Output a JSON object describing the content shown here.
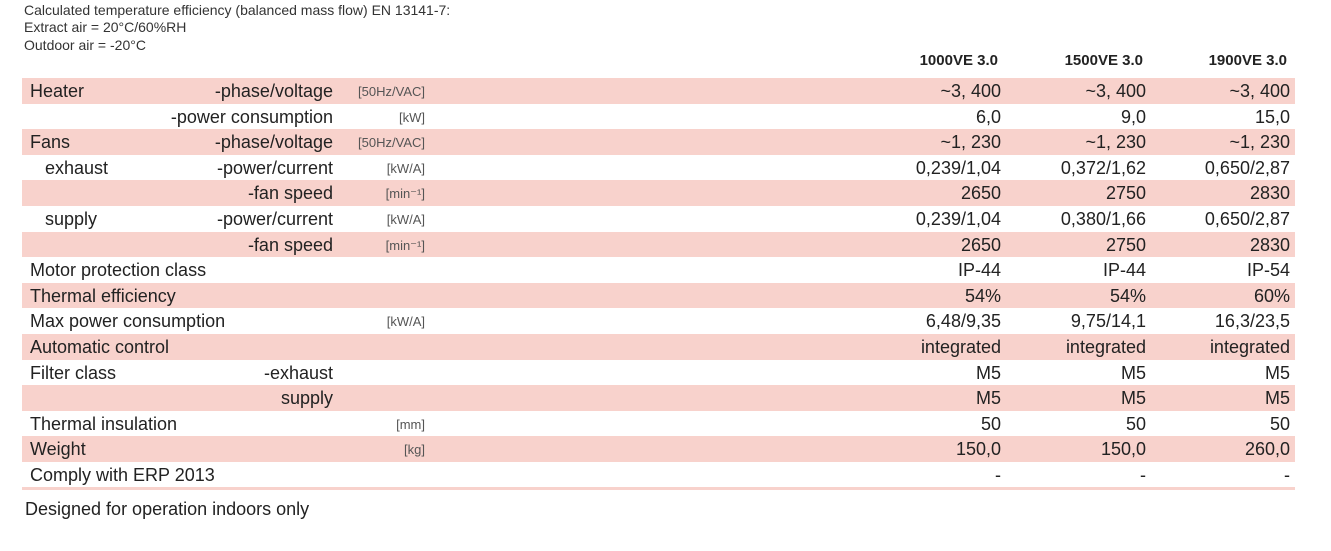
{
  "header": {
    "lines": [
      "Calculated temperature efficiency (balanced mass flow) EN 13141-7:",
      "Extract air = 20°C/60%RH",
      "Outdoor air = -20°C"
    ]
  },
  "table": {
    "columns": [
      "1000VE 3.0",
      "1500VE 3.0",
      "1900VE 3.0"
    ],
    "rows": [
      {
        "label": "Heater",
        "sublabel": "-phase/voltage",
        "unit": "[50Hz/VAC]",
        "values": [
          "~3, 400",
          "~3, 400",
          "~3, 400"
        ]
      },
      {
        "sublabel": "-power consumption",
        "unit": "[kW]",
        "values": [
          "6,0",
          "9,0",
          "15,0"
        ]
      },
      {
        "label": "Fans",
        "sublabel": "-phase/voltage",
        "unit": "[50Hz/VAC]",
        "values": [
          "~1, 230",
          "~1, 230",
          "~1, 230"
        ]
      },
      {
        "label": "exhaust",
        "sublabel": "-power/current",
        "unit": "[kW/A]",
        "values": [
          "0,239/1,04",
          "0,372/1,62",
          "0,650/2,87"
        ]
      },
      {
        "sublabel": "-fan speed",
        "unit": "[min⁻¹]",
        "values": [
          "2650",
          "2750",
          "2830"
        ]
      },
      {
        "label": "supply",
        "sublabel": "-power/current",
        "unit": "[kW/A]",
        "values": [
          "0,239/1,04",
          "0,380/1,66",
          "0,650/2,87"
        ]
      },
      {
        "sublabel": "-fan speed",
        "unit": "[min⁻¹]",
        "values": [
          "2650",
          "2750",
          "2830"
        ]
      },
      {
        "label": "Motor protection class",
        "values": [
          "IP-44",
          "IP-44",
          "IP-54"
        ]
      },
      {
        "label": "Thermal efficiency",
        "values": [
          "54%",
          "54%",
          "60%"
        ]
      },
      {
        "label": "Max power consumption",
        "unit": "[kW/A]",
        "values": [
          "6,48/9,35",
          "9,75/14,1",
          "16,3/23,5"
        ]
      },
      {
        "label": "Automatic control",
        "values": [
          "integrated",
          "integrated",
          "integrated"
        ]
      },
      {
        "label": "Filter class",
        "sublabel": "-exhaust",
        "values": [
          "M5",
          "M5",
          "M5"
        ]
      },
      {
        "sublabel": "supply",
        "values": [
          "M5",
          "M5",
          "M5"
        ]
      },
      {
        "label": "Thermal insulation",
        "unit": "[mm]",
        "values": [
          "50",
          "50",
          "50"
        ]
      },
      {
        "label": "Weight",
        "unit": "[kg]",
        "values": [
          "150,0",
          "150,0",
          "260,0"
        ]
      },
      {
        "label": "Comply with ERP 2013",
        "values": [
          "-",
          "-",
          "-"
        ]
      }
    ]
  },
  "footer": {
    "note": "Designed for operation indoors only"
  }
}
